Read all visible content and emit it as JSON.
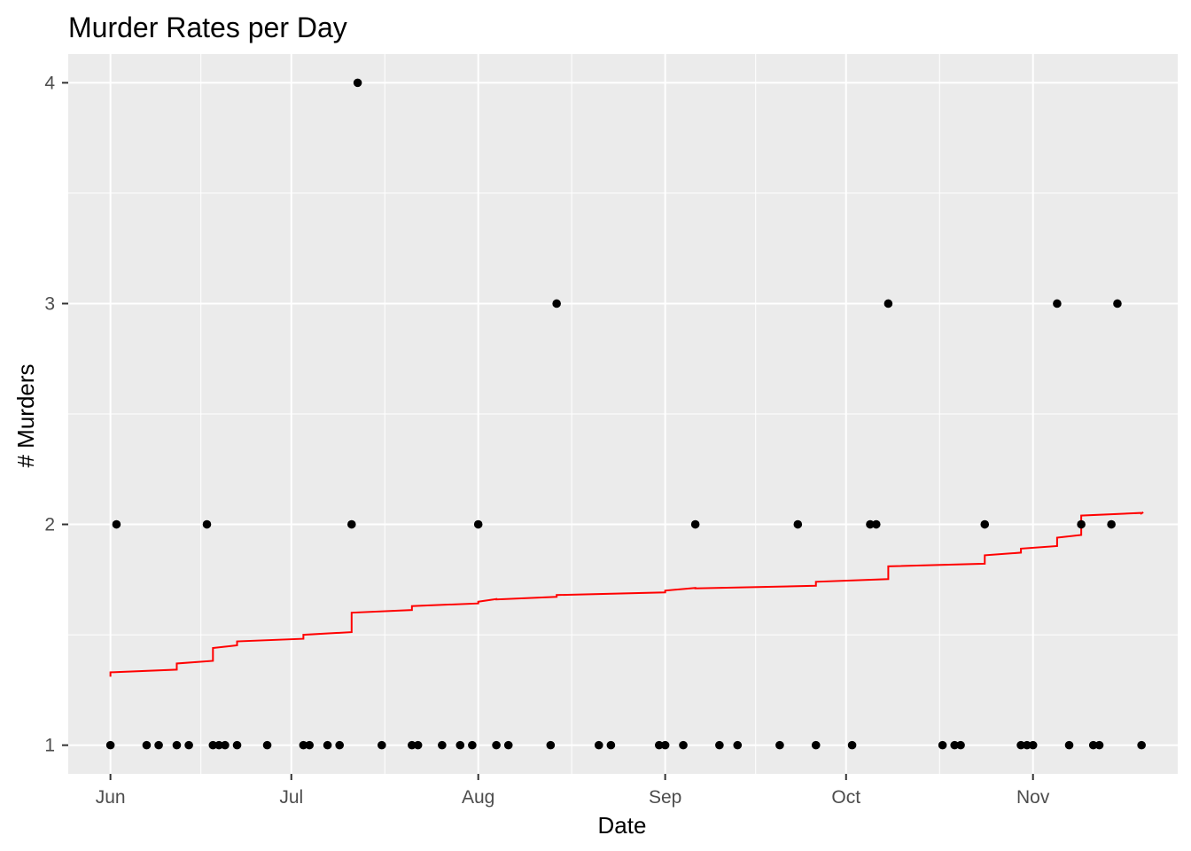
{
  "chart_data": {
    "type": "scatter",
    "title": "Murder Rates per Day",
    "xlabel": "Date",
    "ylabel": "# Murders",
    "x_ticks": [
      {
        "date": "2018-06-01",
        "label": "Jun"
      },
      {
        "date": "2018-07-01",
        "label": "Jul"
      },
      {
        "date": "2018-08-01",
        "label": "Aug"
      },
      {
        "date": "2018-09-01",
        "label": "Sep"
      },
      {
        "date": "2018-10-01",
        "label": "Oct"
      },
      {
        "date": "2018-11-01",
        "label": "Nov"
      }
    ],
    "y_ticks": [
      1,
      2,
      3,
      4
    ],
    "xlim": [
      "2018-05-25",
      "2018-11-25"
    ],
    "ylim": [
      0.87,
      4.13
    ],
    "grid": true,
    "colors": {
      "panel": "#ebebeb",
      "grid": "#ffffff",
      "points": "#000000",
      "line": "#ff0000"
    },
    "points": [
      {
        "x": "2018-06-01",
        "y": 1
      },
      {
        "x": "2018-06-02",
        "y": 2
      },
      {
        "x": "2018-06-07",
        "y": 1
      },
      {
        "x": "2018-06-09",
        "y": 1
      },
      {
        "x": "2018-06-12",
        "y": 1
      },
      {
        "x": "2018-06-14",
        "y": 1
      },
      {
        "x": "2018-06-17",
        "y": 2
      },
      {
        "x": "2018-06-18",
        "y": 1
      },
      {
        "x": "2018-06-19",
        "y": 1
      },
      {
        "x": "2018-06-20",
        "y": 1
      },
      {
        "x": "2018-06-22",
        "y": 1
      },
      {
        "x": "2018-06-27",
        "y": 1
      },
      {
        "x": "2018-07-03",
        "y": 1
      },
      {
        "x": "2018-07-04",
        "y": 1
      },
      {
        "x": "2018-07-07",
        "y": 1
      },
      {
        "x": "2018-07-09",
        "y": 1
      },
      {
        "x": "2018-07-11",
        "y": 2
      },
      {
        "x": "2018-07-12",
        "y": 4
      },
      {
        "x": "2018-07-16",
        "y": 1
      },
      {
        "x": "2018-07-21",
        "y": 1
      },
      {
        "x": "2018-07-22",
        "y": 1
      },
      {
        "x": "2018-07-26",
        "y": 1
      },
      {
        "x": "2018-07-29",
        "y": 1
      },
      {
        "x": "2018-07-31",
        "y": 1
      },
      {
        "x": "2018-08-01",
        "y": 2
      },
      {
        "x": "2018-08-04",
        "y": 1
      },
      {
        "x": "2018-08-06",
        "y": 1
      },
      {
        "x": "2018-08-13",
        "y": 1
      },
      {
        "x": "2018-08-14",
        "y": 3
      },
      {
        "x": "2018-08-21",
        "y": 1
      },
      {
        "x": "2018-08-23",
        "y": 1
      },
      {
        "x": "2018-08-31",
        "y": 1
      },
      {
        "x": "2018-09-01",
        "y": 1
      },
      {
        "x": "2018-09-04",
        "y": 1
      },
      {
        "x": "2018-09-06",
        "y": 2
      },
      {
        "x": "2018-09-10",
        "y": 1
      },
      {
        "x": "2018-09-13",
        "y": 1
      },
      {
        "x": "2018-09-20",
        "y": 1
      },
      {
        "x": "2018-09-23",
        "y": 2
      },
      {
        "x": "2018-09-26",
        "y": 1
      },
      {
        "x": "2018-10-02",
        "y": 1
      },
      {
        "x": "2018-10-05",
        "y": 2
      },
      {
        "x": "2018-10-06",
        "y": 2
      },
      {
        "x": "2018-10-08",
        "y": 3
      },
      {
        "x": "2018-10-17",
        "y": 1
      },
      {
        "x": "2018-10-19",
        "y": 1
      },
      {
        "x": "2018-10-20",
        "y": 1
      },
      {
        "x": "2018-10-24",
        "y": 2
      },
      {
        "x": "2018-10-30",
        "y": 1
      },
      {
        "x": "2018-10-31",
        "y": 1
      },
      {
        "x": "2018-11-01",
        "y": 1
      },
      {
        "x": "2018-11-05",
        "y": 3
      },
      {
        "x": "2018-11-07",
        "y": 1
      },
      {
        "x": "2018-11-09",
        "y": 2
      },
      {
        "x": "2018-11-11",
        "y": 1
      },
      {
        "x": "2018-11-12",
        "y": 1
      },
      {
        "x": "2018-11-14",
        "y": 2
      },
      {
        "x": "2018-11-15",
        "y": 3
      },
      {
        "x": "2018-11-19",
        "y": 1
      }
    ],
    "step_line": [
      {
        "x": "2018-06-01",
        "y": 1.33
      },
      {
        "x": "2018-06-12",
        "y": 1.37
      },
      {
        "x": "2018-06-18",
        "y": 1.44
      },
      {
        "x": "2018-06-22",
        "y": 1.47
      },
      {
        "x": "2018-07-03",
        "y": 1.5
      },
      {
        "x": "2018-07-11",
        "y": 1.6
      },
      {
        "x": "2018-07-21",
        "y": 1.63
      },
      {
        "x": "2018-08-01",
        "y": 1.65
      },
      {
        "x": "2018-08-04",
        "y": 1.66
      },
      {
        "x": "2018-08-14",
        "y": 1.68
      },
      {
        "x": "2018-09-01",
        "y": 1.7
      },
      {
        "x": "2018-09-06",
        "y": 1.71
      },
      {
        "x": "2018-09-26",
        "y": 1.74
      },
      {
        "x": "2018-10-08",
        "y": 1.81
      },
      {
        "x": "2018-10-24",
        "y": 1.86
      },
      {
        "x": "2018-10-30",
        "y": 1.89
      },
      {
        "x": "2018-11-05",
        "y": 1.94
      },
      {
        "x": "2018-11-09",
        "y": 2.04
      },
      {
        "x": "2018-11-19",
        "y": 2.05
      }
    ]
  }
}
